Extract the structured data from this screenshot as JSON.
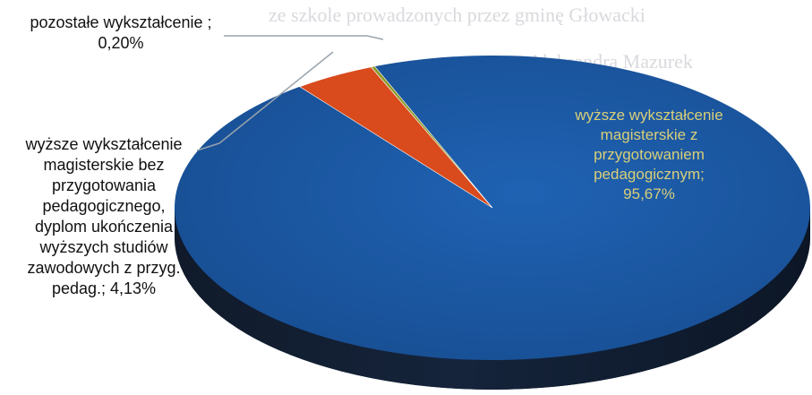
{
  "chart_data": {
    "type": "pie",
    "title": "",
    "slices": [
      {
        "label": "wyższe wykształcenie magisterskie z przygotowaniem pedagogicznym; 95,67%",
        "value": 95.67,
        "color": "#1a56a0"
      },
      {
        "label": "wyższe wykształcenie magisterskie bez przygotowania pedagogicznego, dyplom ukończenia wyższych studiów zawodowych z przyg. pedag.; 4,13%",
        "value": 4.13,
        "color": "#d94a1c"
      },
      {
        "label": "pozostałe wykształcenie ; 0,20%",
        "value": 0.2,
        "color": "#8c9a2a"
      }
    ],
    "legend": "none",
    "style": "3d"
  },
  "labels": {
    "main_lines": "wyższe wykształcenie\nmagisterskie z\nprzygotowaniem\npedagogicznym;\n95,67%",
    "mid_lines": "wyższe wykształcenie\nmagisterskie bez\nprzygotowania\npedagogicznego,\ndyplom ukończenia\nwyższych studiów\nzawodowych z przyg.\npedag.; 4,13%",
    "small_lines": "pozostałe wykształcenie ;\n0,20%"
  },
  "colors": {
    "main_side": "#14355f",
    "main_side_dark": "#0b1f3a",
    "main_label_text": "#d9cf78"
  }
}
